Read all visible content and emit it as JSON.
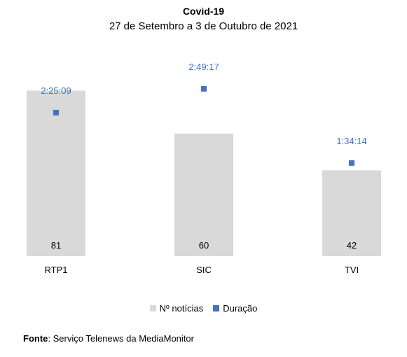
{
  "chart_data": {
    "type": "bar",
    "title": "Covid-19",
    "subtitle": "27 de Setembro a 3 de Outubro de 2021",
    "categories": [
      "RTP1",
      "SIC",
      "TVI"
    ],
    "series": [
      {
        "name": "Nº notícias",
        "kind": "bar",
        "values": [
          81,
          60,
          42
        ],
        "labels": [
          "81",
          "60",
          "42"
        ]
      },
      {
        "name": "Duração",
        "kind": "marker",
        "values_seconds": [
          8709,
          10157,
          5654
        ],
        "labels": [
          "2:25:09",
          "2:49:17",
          "1:34:14"
        ]
      }
    ],
    "bar_ylim": [
      0,
      100
    ],
    "duration_ylim_seconds": [
      0,
      12400
    ],
    "grid": false,
    "legend": "bottom-center"
  },
  "colors": {
    "bar": "#d9d9d9",
    "marker": "#4472c4",
    "duration_label": "#4472c4"
  },
  "source": {
    "label": "Fonte",
    "text": ": Serviço Telenews da MediaMonitor"
  }
}
